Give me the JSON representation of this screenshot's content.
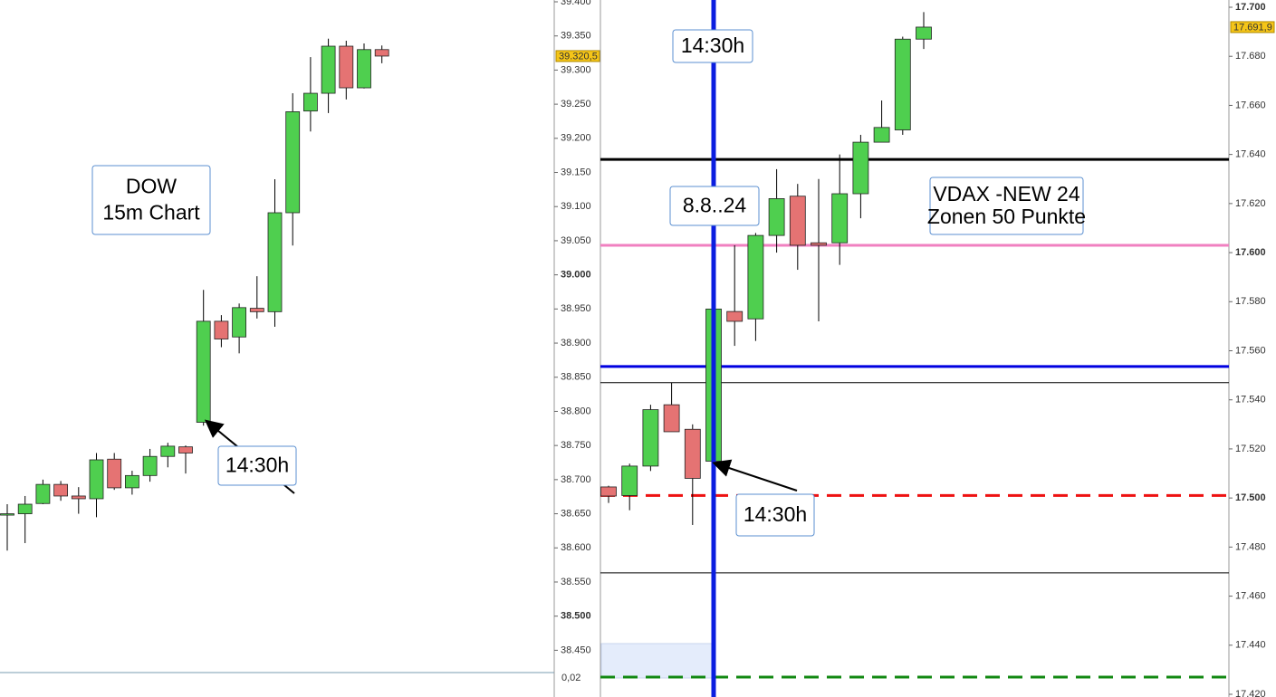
{
  "chart_data": [
    {
      "type": "candlestick",
      "open": [
        38648,
        38650,
        38665,
        38693,
        38676,
        38672,
        38730,
        38688,
        38706,
        38734,
        38748,
        38784,
        38932,
        38909,
        38951,
        38946,
        39091,
        39240,
        39266,
        39335,
        39274,
        39330
      ],
      "high": [
        38664,
        38676,
        38700,
        38698,
        38689,
        38739,
        38739,
        38713,
        38745,
        38754,
        38750,
        38978,
        38941,
        38958,
        38998,
        39140,
        39266,
        39319,
        39346,
        39343,
        39339,
        39336
      ],
      "low": [
        38596,
        38607,
        38664,
        38669,
        38650,
        38645,
        38685,
        38678,
        38697,
        38718,
        38709,
        38779,
        38894,
        38885,
        38936,
        38924,
        39043,
        39210,
        39237,
        39257,
        39273,
        39310
      ],
      "close": [
        38650,
        38664,
        38693,
        38676,
        38672,
        38729,
        38688,
        38706,
        38734,
        38749,
        38739,
        38932,
        38906,
        38952,
        38946,
        39091,
        39239,
        39266,
        39335,
        39274,
        39330,
        39320.5
      ],
      "up_color": "#4fcf4f",
      "down_color": "#e57373",
      "ylim": [
        38420,
        39400
      ],
      "yticks": [
        {
          "value": 39400,
          "label": "39.400"
        },
        {
          "value": 39350,
          "label": "39.350"
        },
        {
          "value": 39300,
          "label": "39.300"
        },
        {
          "value": 39250,
          "label": "39.250"
        },
        {
          "value": 39200,
          "label": "39.200"
        },
        {
          "value": 39150,
          "label": "39.150"
        },
        {
          "value": 39100,
          "label": "39.100"
        },
        {
          "value": 39050,
          "label": "39.050"
        },
        {
          "value": 39000,
          "label": "39.000"
        },
        {
          "value": 38950,
          "label": "38.950"
        },
        {
          "value": 38900,
          "label": "38.900"
        },
        {
          "value": 38850,
          "label": "38.850"
        },
        {
          "value": 38800,
          "label": "38.800"
        },
        {
          "value": 38750,
          "label": "38.750"
        },
        {
          "value": 38700,
          "label": "38.700"
        },
        {
          "value": 38650,
          "label": "38.650"
        },
        {
          "value": 38600,
          "label": "38.600"
        },
        {
          "value": 38550,
          "label": "38.550"
        },
        {
          "value": 38500,
          "label": "38.500"
        },
        {
          "value": 38450,
          "label": "38.450"
        }
      ],
      "last_price": {
        "value": 39320.5,
        "label": "39.320,5"
      },
      "indicator_label": "0,02",
      "hlines": [],
      "annotations": [
        {
          "lines": [
            "DOW",
            "15m Chart"
          ]
        },
        {
          "lines": [
            "14:30h"
          ]
        }
      ]
    },
    {
      "type": "candlestick",
      "open": [
        17504.5,
        17501,
        17513,
        17538,
        17528,
        17515,
        17576,
        17573,
        17607,
        17623,
        17604,
        17604,
        17624,
        17645,
        17650,
        17687
      ],
      "high": [
        17505,
        17514,
        17538,
        17547,
        17530,
        17577,
        17603,
        17608,
        17634,
        17628,
        17630,
        17640,
        17648,
        17662,
        17688,
        17698
      ],
      "low": [
        17498,
        17495,
        17511,
        17527,
        17489,
        17513,
        17562,
        17564,
        17600,
        17593,
        17572,
        17595,
        17614,
        17645,
        17648,
        17683
      ],
      "close": [
        17500.8,
        17513,
        17536,
        17527,
        17508,
        17577,
        17572,
        17607,
        17622,
        17603,
        17603,
        17624,
        17645,
        17651,
        17687,
        17691.9
      ],
      "up_color": "#4fcf4f",
      "down_color": "#e57373",
      "ylim": [
        17420,
        17700
      ],
      "yticks": [
        {
          "value": 17700,
          "label": "17.700"
        },
        {
          "value": 17680,
          "label": "17.680"
        },
        {
          "value": 17660,
          "label": "17.660"
        },
        {
          "value": 17640,
          "label": "17.640"
        },
        {
          "value": 17620,
          "label": "17.620"
        },
        {
          "value": 17600,
          "label": "17.600"
        },
        {
          "value": 17580,
          "label": "17.580"
        },
        {
          "value": 17560,
          "label": "17.560"
        },
        {
          "value": 17540,
          "label": "17.540"
        },
        {
          "value": 17520,
          "label": "17.520"
        },
        {
          "value": 17500,
          "label": "17.500"
        },
        {
          "value": 17480,
          "label": "17.480"
        },
        {
          "value": 17460,
          "label": "17.460"
        },
        {
          "value": 17440,
          "label": "17.440"
        },
        {
          "value": 17420,
          "label": "17.420"
        }
      ],
      "last_price": {
        "value": 17691.9,
        "label": "17.691,9"
      },
      "hlines": [
        {
          "value": 17638,
          "color": "#000000",
          "width": 3,
          "style": "solid"
        },
        {
          "value": 17603,
          "color": "#f080c0",
          "width": 3,
          "style": "solid"
        },
        {
          "value": 17553.6,
          "color": "#0000e0",
          "width": 3,
          "style": "solid"
        },
        {
          "value": 17547,
          "color": "#000000",
          "width": 1,
          "style": "solid"
        },
        {
          "value": 17501,
          "color": "#ee1111",
          "width": 3,
          "style": "dashed"
        },
        {
          "value": 17469.5,
          "color": "#000000",
          "width": 1,
          "style": "solid"
        },
        {
          "value": 17427,
          "color": "#118811",
          "width": 3,
          "style": "dashed"
        }
      ],
      "annotations": [
        {
          "lines": [
            "14:30h"
          ]
        },
        {
          "lines": [
            "8.8..24"
          ]
        },
        {
          "lines": [
            "14:30h"
          ]
        },
        {
          "lines": [
            "VDAX -NEW 24",
            "Zonen 50 Punkte"
          ]
        }
      ]
    }
  ]
}
